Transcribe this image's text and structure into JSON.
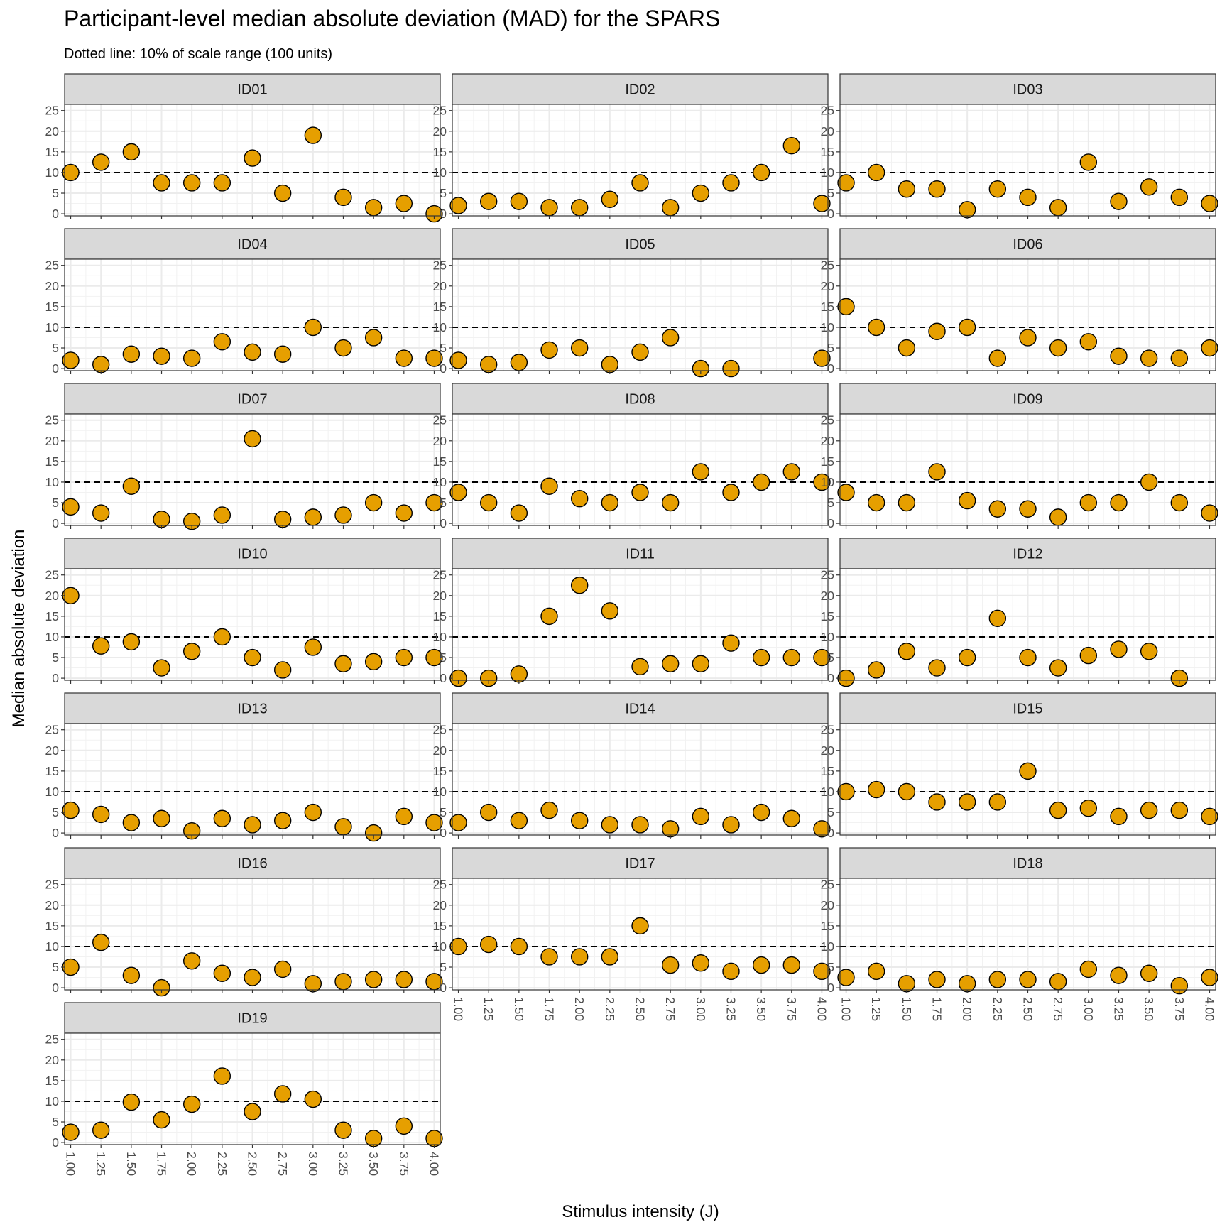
{
  "chart_data": {
    "type": "scatter",
    "title": "Participant-level median absolute deviation (MAD) for the SPARS",
    "subtitle": "Dotted line: 10% of scale range (100 units)",
    "xlabel": "Stimulus intensity (J)",
    "ylabel": "Median absolute deviation",
    "x": [
      1.0,
      1.25,
      1.5,
      1.75,
      2.0,
      2.25,
      2.5,
      2.75,
      3.0,
      3.25,
      3.5,
      3.75,
      4.0
    ],
    "x_tick_labels": [
      "1.00",
      "1.25",
      "1.50",
      "1.75",
      "2.00",
      "2.25",
      "2.50",
      "2.75",
      "3.00",
      "3.25",
      "3.50",
      "3.75",
      "4.00"
    ],
    "y_ticks": [
      0,
      5,
      10,
      15,
      20,
      25
    ],
    "y_tick_labels": [
      "0",
      "5",
      "10",
      "15",
      "20",
      "25"
    ],
    "xlim": [
      0.95,
      4.05
    ],
    "ylim": [
      -0.5,
      26.5
    ],
    "reference_line_y": 10,
    "point_color": "#E69F00",
    "point_outline": "#000000",
    "grid": true,
    "facet_columns": 3,
    "panels": [
      {
        "id": "ID01",
        "values": [
          10,
          12.5,
          15,
          7.5,
          7.5,
          7.5,
          13.5,
          5,
          19,
          4,
          1.5,
          2.5,
          0
        ]
      },
      {
        "id": "ID02",
        "values": [
          2,
          3,
          3,
          1.5,
          1.5,
          3.5,
          7.5,
          1.5,
          5,
          7.5,
          10,
          16.5,
          2.5
        ]
      },
      {
        "id": "ID03",
        "values": [
          7.5,
          10,
          6,
          6,
          1,
          6,
          4,
          1.5,
          12.5,
          3,
          6.5,
          4,
          2.5
        ]
      },
      {
        "id": "ID04",
        "values": [
          2,
          1,
          3.5,
          3,
          2.5,
          6.5,
          4,
          3.5,
          10,
          5,
          7.5,
          2.5,
          2.5
        ]
      },
      {
        "id": "ID05",
        "values": [
          2,
          1,
          1.5,
          4.5,
          5,
          1,
          4,
          7.5,
          0,
          0,
          null,
          null,
          2.5
        ]
      },
      {
        "id": "ID06",
        "values": [
          15,
          10,
          5,
          9,
          10,
          2.5,
          7.5,
          5,
          6.5,
          3,
          2.5,
          2.5,
          5
        ]
      },
      {
        "id": "ID07",
        "values": [
          4,
          2.5,
          9,
          1,
          0.5,
          2,
          20.5,
          1,
          1.5,
          2,
          5,
          2.5,
          5
        ]
      },
      {
        "id": "ID08",
        "values": [
          7.5,
          5,
          2.5,
          9,
          6,
          5,
          7.5,
          5,
          12.5,
          7.5,
          10,
          12.5,
          10
        ]
      },
      {
        "id": "ID09",
        "values": [
          7.5,
          5,
          5,
          12.5,
          5.5,
          3.5,
          3.5,
          1.5,
          5,
          5,
          10,
          5,
          2.5
        ]
      },
      {
        "id": "ID10",
        "values": [
          20,
          7.8,
          8.8,
          2.5,
          6.5,
          10,
          5,
          2,
          7.5,
          3.5,
          4,
          5,
          5
        ]
      },
      {
        "id": "ID11",
        "values": [
          0,
          0,
          1,
          15,
          22.5,
          16.3,
          2.8,
          3.5,
          3.5,
          8.5,
          5,
          5,
          5
        ]
      },
      {
        "id": "ID12",
        "values": [
          0,
          2,
          6.5,
          2.5,
          5,
          14.5,
          5,
          2.5,
          5.5,
          7,
          6.5,
          0,
          null
        ]
      },
      {
        "id": "ID13",
        "values": [
          5.5,
          4.5,
          2.5,
          3.5,
          0.5,
          3.5,
          2,
          3,
          5,
          1.5,
          0,
          4,
          2.5
        ]
      },
      {
        "id": "ID14",
        "values": [
          2.5,
          5,
          3,
          5.5,
          3,
          2,
          2,
          1,
          4,
          2,
          5,
          3.5,
          1
        ]
      },
      {
        "id": "ID15",
        "values": [
          10,
          10.5,
          10,
          7.5,
          7.5,
          7.5,
          15,
          5.5,
          6,
          4,
          5.5,
          5.5,
          4
        ]
      },
      {
        "id": "ID16",
        "values": [
          5,
          11,
          3,
          0,
          6.5,
          3.5,
          2.5,
          4.5,
          1,
          1.5,
          2,
          2,
          1.5
        ]
      },
      {
        "id": "ID17",
        "values": [
          10,
          10.5,
          10,
          7.5,
          7.5,
          7.5,
          15,
          5.5,
          6,
          4,
          5.5,
          5.5,
          4
        ]
      },
      {
        "id": "ID18",
        "values": [
          2.5,
          4,
          1,
          2,
          1,
          2,
          2,
          1.5,
          4.5,
          3,
          3.5,
          0.5,
          2.5
        ]
      },
      {
        "id": "ID19",
        "values": [
          2.5,
          3,
          9.8,
          5.5,
          9.3,
          16.1,
          7.5,
          11.8,
          10.5,
          3,
          1,
          4,
          1
        ]
      }
    ]
  }
}
